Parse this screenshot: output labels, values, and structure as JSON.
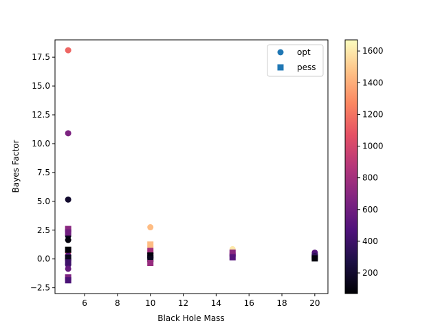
{
  "chart_data": {
    "type": "scatter",
    "title": "",
    "xlabel": "Black Hole Mass",
    "ylabel": "Bayes Factor",
    "xlim": [
      4.2,
      20.8
    ],
    "ylim": [
      -3.0,
      19.0
    ],
    "x_ticks": [
      6,
      8,
      10,
      12,
      14,
      16,
      18,
      20
    ],
    "x_tick_labels": [
      "6",
      "8",
      "10",
      "12",
      "14",
      "16",
      "18",
      "20"
    ],
    "y_ticks": [
      -2.5,
      0.0,
      2.5,
      5.0,
      7.5,
      10.0,
      12.5,
      15.0,
      17.5
    ],
    "y_tick_labels": [
      "−2.5",
      "0.0",
      "2.5",
      "5.0",
      "7.5",
      "10.0",
      "12.5",
      "15.0",
      "17.5"
    ],
    "grid": false,
    "legend": {
      "placement": "top-right",
      "entries": [
        {
          "label": "opt",
          "marker": "circle"
        },
        {
          "label": "pess",
          "marker": "square"
        }
      ],
      "marker_color": "#1f77b4"
    },
    "colorbar": {
      "colormap": "magma",
      "range": [
        70,
        1670
      ],
      "ticks": [
        200,
        400,
        600,
        800,
        1000,
        1200,
        1400,
        1600
      ],
      "tick_labels": [
        "200",
        "400",
        "600",
        "800",
        "1000",
        "1200",
        "1400",
        "1600"
      ]
    },
    "series": [
      {
        "name": "opt",
        "marker": "circle",
        "points": [
          {
            "x": 5,
            "y": 18.1,
            "c": 1150
          },
          {
            "x": 5,
            "y": 10.9,
            "c": 650
          },
          {
            "x": 5,
            "y": 5.15,
            "c": 200
          },
          {
            "x": 5,
            "y": 2.0,
            "c": 150
          },
          {
            "x": 5,
            "y": 1.65,
            "c": 100
          },
          {
            "x": 5,
            "y": 0.6,
            "c": 1100
          },
          {
            "x": 5,
            "y": 0.3,
            "c": 500
          },
          {
            "x": 5,
            "y": 0.0,
            "c": 200
          },
          {
            "x": 5,
            "y": -0.5,
            "c": 450
          },
          {
            "x": 5,
            "y": -0.85,
            "c": 550
          },
          {
            "x": 10,
            "y": 2.75,
            "c": 1450
          },
          {
            "x": 10,
            "y": 1.1,
            "c": 1600
          },
          {
            "x": 10,
            "y": 0.45,
            "c": 200
          },
          {
            "x": 10,
            "y": 0.3,
            "c": 400
          },
          {
            "x": 10,
            "y": 0.1,
            "c": 700
          },
          {
            "x": 15,
            "y": 0.85,
            "c": 1600
          },
          {
            "x": 15,
            "y": 0.5,
            "c": 750
          },
          {
            "x": 15,
            "y": 0.25,
            "c": 400
          },
          {
            "x": 20,
            "y": 0.55,
            "c": 500
          },
          {
            "x": 20,
            "y": 0.4,
            "c": 450
          },
          {
            "x": 20,
            "y": 0.25,
            "c": 300
          },
          {
            "x": 20,
            "y": 0.1,
            "c": 600
          }
        ]
      },
      {
        "name": "pess",
        "marker": "square",
        "points": [
          {
            "x": 5,
            "y": 2.6,
            "c": 700
          },
          {
            "x": 5,
            "y": 2.3,
            "c": 600
          },
          {
            "x": 5,
            "y": 0.8,
            "c": 90
          },
          {
            "x": 5,
            "y": 0.1,
            "c": 150
          },
          {
            "x": 5,
            "y": -0.3,
            "c": 400
          },
          {
            "x": 5,
            "y": -1.6,
            "c": 650
          },
          {
            "x": 5,
            "y": -1.85,
            "c": 450
          },
          {
            "x": 10,
            "y": 1.25,
            "c": 1450
          },
          {
            "x": 10,
            "y": 0.7,
            "c": 800
          },
          {
            "x": 10,
            "y": 0.3,
            "c": 100
          },
          {
            "x": 10,
            "y": 0.0,
            "c": 150
          },
          {
            "x": 10,
            "y": -0.35,
            "c": 750
          },
          {
            "x": 15,
            "y": 0.55,
            "c": 700
          },
          {
            "x": 15,
            "y": 0.15,
            "c": 500
          },
          {
            "x": 20,
            "y": 0.2,
            "c": 350
          },
          {
            "x": 20,
            "y": 0.05,
            "c": 100
          }
        ]
      }
    ]
  }
}
